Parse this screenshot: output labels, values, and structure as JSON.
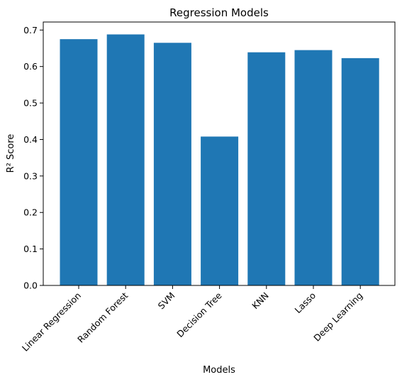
{
  "chart_data": {
    "type": "bar",
    "title": "Regression Models",
    "xlabel": "Models",
    "ylabel": "R² Score",
    "categories": [
      "Linear Regression",
      "Random Forest",
      "SVM",
      "Decision Tree",
      "KNN",
      "Lasso",
      "Deep Learning"
    ],
    "values": [
      0.675,
      0.688,
      0.665,
      0.408,
      0.639,
      0.645,
      0.623
    ],
    "ylim": [
      0,
      0.722
    ],
    "yticks": [
      0.0,
      0.1,
      0.2,
      0.3,
      0.4,
      0.5,
      0.6,
      0.7
    ],
    "bar_color": "#1f77b4",
    "grid": false,
    "x_tick_rotation_deg": 45
  }
}
